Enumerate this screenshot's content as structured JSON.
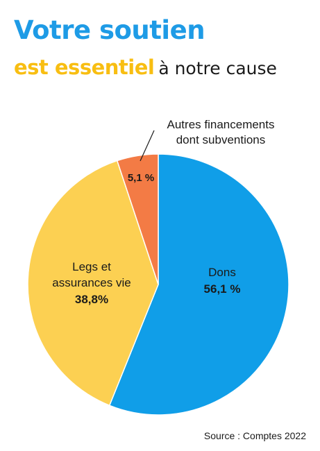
{
  "title": {
    "line1": "Votre soutien",
    "line2_emphasis": "est essentiel",
    "line2_rest": "à notre cause"
  },
  "colors": {
    "title_blue": "#1e9be6",
    "title_yellow": "#f8be12",
    "dons": "#109ee8",
    "legs": "#fcd052",
    "autres": "#f37b45"
  },
  "chart_data": {
    "type": "pie",
    "title": "Votre soutien est essentiel à notre cause",
    "slices": [
      {
        "label_lines": [
          "Dons"
        ],
        "value_label": "56,1 %",
        "value": 56.1,
        "color": "#109ee8"
      },
      {
        "label_lines": [
          "Legs et",
          "assurances vie"
        ],
        "value_label": "38,8%",
        "value": 38.8,
        "color": "#fcd052"
      },
      {
        "label_lines": [
          "Autres financements",
          "dont subventions"
        ],
        "value_label": "5,1 %",
        "value": 5.1,
        "color": "#f37b45"
      }
    ]
  },
  "source": "Source : Comptes 2022"
}
